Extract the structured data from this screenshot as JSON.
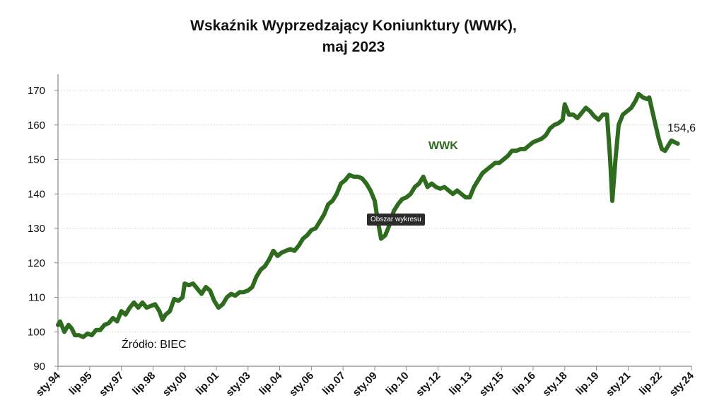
{
  "chart_data": {
    "type": "line",
    "title": "Wskaźnik Wyprzedzający Koniunktury (WWK),",
    "subtitle": "maj 2023",
    "series_label": "WWK",
    "end_value_label": "154,6",
    "source": "Źródło: BIEC",
    "tooltip": "Obszar wykresu",
    "ylim": [
      90,
      170
    ],
    "yticks": [
      90,
      100,
      110,
      120,
      130,
      140,
      150,
      160,
      170
    ],
    "xlim": [
      1994.0,
      2024.0
    ],
    "xtick_labels": [
      "sty.94",
      "lip.95",
      "sty.97",
      "lip.98",
      "sty.00",
      "lip.01",
      "sty.03",
      "lip.04",
      "sty.06",
      "lip.07",
      "sty.09",
      "lip.10",
      "sty.12",
      "lip.13",
      "sty.15",
      "lip.16",
      "sty.18",
      "lip.19",
      "sty.21",
      "lip.22",
      "sty.24"
    ],
    "line_color": "#2e6b1f",
    "series": [
      {
        "name": "WWK",
        "points": [
          [
            1994.0,
            102
          ],
          [
            1994.1,
            103
          ],
          [
            1994.3,
            100
          ],
          [
            1994.5,
            102
          ],
          [
            1994.65,
            101
          ],
          [
            1994.8,
            99
          ],
          [
            1995.0,
            99
          ],
          [
            1995.2,
            98.5
          ],
          [
            1995.4,
            99.5
          ],
          [
            1995.6,
            99
          ],
          [
            1995.8,
            100.5
          ],
          [
            1996.0,
            100.5
          ],
          [
            1996.2,
            102
          ],
          [
            1996.4,
            102.5
          ],
          [
            1996.6,
            104
          ],
          [
            1996.8,
            103
          ],
          [
            1997.0,
            106
          ],
          [
            1997.2,
            105
          ],
          [
            1997.4,
            107
          ],
          [
            1997.6,
            108.5
          ],
          [
            1997.8,
            107
          ],
          [
            1998.0,
            108.5
          ],
          [
            1998.2,
            107
          ],
          [
            1998.4,
            107.5
          ],
          [
            1998.6,
            108
          ],
          [
            1998.8,
            106
          ],
          [
            1998.95,
            103.5
          ],
          [
            1999.1,
            105
          ],
          [
            1999.3,
            106
          ],
          [
            1999.5,
            109.5
          ],
          [
            1999.7,
            109
          ],
          [
            1999.9,
            110
          ],
          [
            2000.0,
            114
          ],
          [
            2000.2,
            113.5
          ],
          [
            2000.4,
            114
          ],
          [
            2000.6,
            112.5
          ],
          [
            2000.8,
            111
          ],
          [
            2001.0,
            113
          ],
          [
            2001.2,
            112
          ],
          [
            2001.4,
            109
          ],
          [
            2001.6,
            107
          ],
          [
            2001.8,
            108
          ],
          [
            2002.0,
            110
          ],
          [
            2002.2,
            111
          ],
          [
            2002.4,
            110.5
          ],
          [
            2002.6,
            111.5
          ],
          [
            2002.8,
            111.5
          ],
          [
            2003.0,
            112
          ],
          [
            2003.2,
            113
          ],
          [
            2003.4,
            116
          ],
          [
            2003.6,
            118
          ],
          [
            2003.8,
            119
          ],
          [
            2004.0,
            121
          ],
          [
            2004.2,
            123.5
          ],
          [
            2004.4,
            122
          ],
          [
            2004.6,
            123
          ],
          [
            2004.8,
            123.5
          ],
          [
            2005.0,
            124
          ],
          [
            2005.2,
            123.5
          ],
          [
            2005.4,
            125
          ],
          [
            2005.6,
            127
          ],
          [
            2005.8,
            128
          ],
          [
            2006.0,
            129.5
          ],
          [
            2006.2,
            130
          ],
          [
            2006.4,
            132
          ],
          [
            2006.6,
            134
          ],
          [
            2006.8,
            137
          ],
          [
            2007.0,
            138
          ],
          [
            2007.2,
            140
          ],
          [
            2007.4,
            143
          ],
          [
            2007.6,
            144
          ],
          [
            2007.8,
            145.5
          ],
          [
            2008.0,
            145
          ],
          [
            2008.2,
            145
          ],
          [
            2008.4,
            144.5
          ],
          [
            2008.6,
            143
          ],
          [
            2008.8,
            141
          ],
          [
            2009.0,
            138
          ],
          [
            2009.15,
            132
          ],
          [
            2009.3,
            127
          ],
          [
            2009.5,
            128
          ],
          [
            2009.7,
            131
          ],
          [
            2009.9,
            135
          ],
          [
            2010.1,
            137
          ],
          [
            2010.3,
            138.5
          ],
          [
            2010.5,
            139
          ],
          [
            2010.7,
            140
          ],
          [
            2010.9,
            142
          ],
          [
            2011.1,
            143
          ],
          [
            2011.3,
            145
          ],
          [
            2011.5,
            142
          ],
          [
            2011.7,
            143
          ],
          [
            2011.9,
            142
          ],
          [
            2012.1,
            141.5
          ],
          [
            2012.3,
            142
          ],
          [
            2012.5,
            141
          ],
          [
            2012.7,
            140
          ],
          [
            2012.9,
            141
          ],
          [
            2013.1,
            140
          ],
          [
            2013.3,
            139
          ],
          [
            2013.5,
            139
          ],
          [
            2013.7,
            142
          ],
          [
            2013.9,
            144
          ],
          [
            2014.1,
            146
          ],
          [
            2014.3,
            147
          ],
          [
            2014.5,
            148
          ],
          [
            2014.7,
            149
          ],
          [
            2014.9,
            149
          ],
          [
            2015.1,
            150
          ],
          [
            2015.3,
            151
          ],
          [
            2015.5,
            152.5
          ],
          [
            2015.7,
            152.5
          ],
          [
            2015.9,
            153
          ],
          [
            2016.1,
            153
          ],
          [
            2016.3,
            154
          ],
          [
            2016.5,
            155
          ],
          [
            2016.7,
            155.5
          ],
          [
            2016.9,
            156
          ],
          [
            2017.1,
            157
          ],
          [
            2017.3,
            159
          ],
          [
            2017.5,
            160
          ],
          [
            2017.7,
            160.5
          ],
          [
            2017.9,
            161.5
          ],
          [
            2018.0,
            166
          ],
          [
            2018.2,
            163
          ],
          [
            2018.4,
            163
          ],
          [
            2018.6,
            162
          ],
          [
            2018.8,
            163.5
          ],
          [
            2019.0,
            165
          ],
          [
            2019.2,
            164
          ],
          [
            2019.4,
            162.5
          ],
          [
            2019.6,
            161.5
          ],
          [
            2019.8,
            163
          ],
          [
            2020.0,
            163
          ],
          [
            2020.15,
            150
          ],
          [
            2020.25,
            138
          ],
          [
            2020.4,
            150
          ],
          [
            2020.55,
            160
          ],
          [
            2020.75,
            163
          ],
          [
            2020.95,
            164
          ],
          [
            2021.15,
            165
          ],
          [
            2021.35,
            167
          ],
          [
            2021.5,
            169
          ],
          [
            2021.7,
            168
          ],
          [
            2021.9,
            167.5
          ],
          [
            2022.0,
            168
          ],
          [
            2022.15,
            164
          ],
          [
            2022.3,
            160
          ],
          [
            2022.45,
            156
          ],
          [
            2022.6,
            153
          ],
          [
            2022.75,
            152.5
          ],
          [
            2022.9,
            154
          ],
          [
            2023.05,
            155.5
          ],
          [
            2023.2,
            155
          ],
          [
            2023.35,
            154.6
          ]
        ]
      }
    ]
  }
}
